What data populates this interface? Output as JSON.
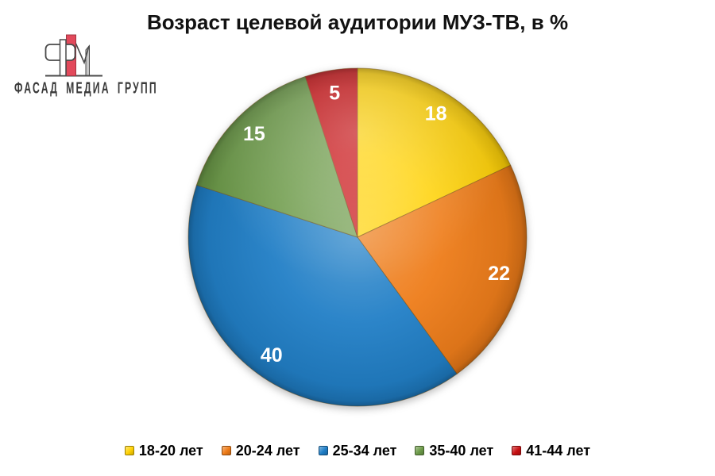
{
  "logo": {
    "text": "ФАСАД МЕДИА ГРУПП"
  },
  "chart_data": {
    "type": "pie",
    "title": "Возраст целевой аудитории МУЗ-ТВ, в %",
    "unit": "%",
    "start_angle_deg": 0,
    "direction": "clockwise",
    "legend_position": "bottom",
    "data_labels": "value",
    "slices": [
      {
        "label": "18-20 лет",
        "value": 18,
        "color": "#FFD103"
      },
      {
        "label": "20-24 лет",
        "value": 22,
        "color": "#EE7B17"
      },
      {
        "label": "25-34 лет",
        "value": 40,
        "color": "#1E7DC6"
      },
      {
        "label": "35-40 лет",
        "value": 15,
        "color": "#6C9A48"
      },
      {
        "label": "41-44 лет",
        "value": 5,
        "color": "#C81013"
      }
    ]
  }
}
